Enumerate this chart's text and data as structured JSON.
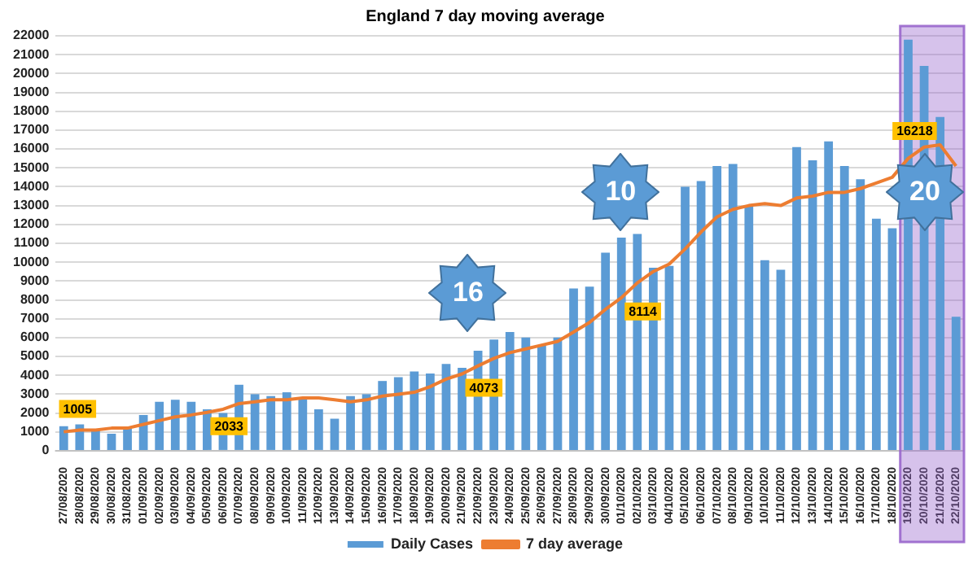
{
  "chart_data": {
    "type": "bar",
    "title": "England 7 day moving average",
    "categories": [
      "27/08/2020",
      "28/08/2020",
      "29/08/2020",
      "30/08/2020",
      "31/08/2020",
      "01/09/2020",
      "02/09/2020",
      "03/09/2020",
      "04/09/2020",
      "05/09/2020",
      "06/09/2020",
      "07/09/2020",
      "08/09/2020",
      "09/09/2020",
      "10/09/2020",
      "11/09/2020",
      "12/09/2020",
      "13/09/2020",
      "14/09/2020",
      "15/09/2020",
      "16/09/2020",
      "17/09/2020",
      "18/09/2020",
      "19/09/2020",
      "20/09/2020",
      "21/09/2020",
      "22/09/2020",
      "23/09/2020",
      "24/09/2020",
      "25/09/2020",
      "26/09/2020",
      "27/09/2020",
      "28/09/2020",
      "29/09/2020",
      "30/09/2020",
      "01/10/2020",
      "02/10/2020",
      "03/10/2020",
      "04/10/2020",
      "05/10/2020",
      "06/10/2020",
      "07/10/2020",
      "08/10/2020",
      "09/10/2020",
      "10/10/2020",
      "11/10/2020",
      "12/10/2020",
      "13/10/2020",
      "14/10/2020",
      "15/10/2020",
      "16/10/2020",
      "17/10/2020",
      "18/10/2020",
      "19/10/2020",
      "20/10/2020",
      "21/10/2020",
      "22/10/2020"
    ],
    "series": [
      {
        "name": "Daily Cases",
        "color": "#5b9bd5",
        "values": [
          1300,
          1400,
          1100,
          900,
          1200,
          1900,
          2600,
          2700,
          2600,
          2200,
          2000,
          3500,
          3000,
          2900,
          3100,
          2800,
          2200,
          1700,
          2900,
          3000,
          3700,
          3900,
          4200,
          4100,
          4600,
          4400,
          5300,
          5900,
          6300,
          6000,
          5600,
          6000,
          8600,
          8700,
          10500,
          11300,
          11500,
          9700,
          9800,
          14000,
          14300,
          15100,
          15200,
          13000,
          10100,
          9600,
          16100,
          15400,
          16400,
          15100,
          14400,
          12300,
          11800,
          21800,
          20400,
          17700,
          7100
        ]
      },
      {
        "name": "7 day average",
        "type": "line",
        "color": "#ed7d31",
        "values": [
          1005,
          1100,
          1100,
          1200,
          1200,
          1400,
          1600,
          1800,
          1900,
          2033,
          2200,
          2500,
          2600,
          2700,
          2700,
          2800,
          2800,
          2700,
          2600,
          2700,
          2900,
          3000,
          3100,
          3400,
          3800,
          4073,
          4500,
          4900,
          5200,
          5400,
          5600,
          5800,
          6300,
          6800,
          7500,
          8114,
          8900,
          9500,
          9900,
          10700,
          11600,
          12400,
          12800,
          13000,
          13100,
          13000,
          13400,
          13500,
          13700,
          13700,
          13900,
          14200,
          14500,
          15500,
          16100,
          16218,
          15100
        ],
        "value_labels": [
          "1005",
          null,
          null,
          null,
          null,
          null,
          null,
          null,
          null,
          "2033",
          null,
          null,
          null,
          null,
          null,
          null,
          null,
          null,
          null,
          null,
          null,
          null,
          null,
          null,
          null,
          "4073",
          null,
          null,
          null,
          null,
          null,
          null,
          null,
          null,
          null,
          "8114",
          null,
          null,
          null,
          null,
          null,
          null,
          null,
          null,
          null,
          null,
          null,
          null,
          null,
          null,
          null,
          null,
          null,
          null,
          null,
          "16218",
          null
        ]
      }
    ],
    "ylim": [
      0,
      22000
    ],
    "yticks": [
      0,
      1000,
      2000,
      3000,
      4000,
      5000,
      6000,
      7000,
      8000,
      9000,
      10000,
      11000,
      12000,
      13000,
      14000,
      15000,
      16000,
      17000,
      18000,
      19000,
      20000,
      21000,
      22000
    ],
    "grid": "y",
    "legend": "bottom",
    "marker": "none",
    "bands": [
      {
        "axis": "x",
        "from": "19/10/2020",
        "to": "22/10/2020",
        "color": "#9966cc"
      }
    ],
    "annotations": [
      "16",
      "10",
      "20"
    ]
  }
}
